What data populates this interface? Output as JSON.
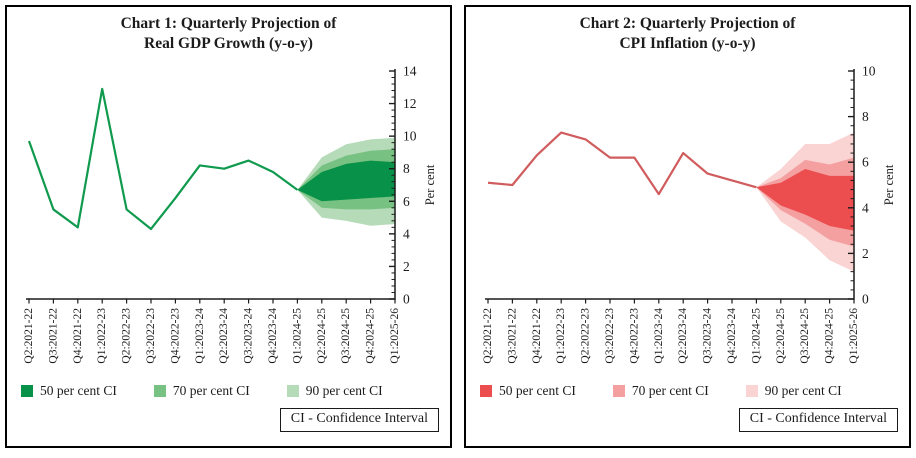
{
  "chart_data": [
    {
      "type": "line",
      "variant": "fan-chart",
      "title_line1": "Chart 1: Quarterly Projection of",
      "title_line2": "Real GDP Growth (y-o-y)",
      "ylabel": "Per cent",
      "ylim": [
        0,
        14
      ],
      "yticks": [
        0,
        2,
        4,
        6,
        8,
        10,
        12,
        14
      ],
      "minor_tick_step": 0.4,
      "grid": false,
      "legend_position": "bottom",
      "categories": [
        "Q2:2021-22",
        "Q3:2021-22",
        "Q4:2021-22",
        "Q1:2022-23",
        "Q2:2022-23",
        "Q3:2022-23",
        "Q4:2022-23",
        "Q1:2023-24",
        "Q2:2023-24",
        "Q3:2023-24",
        "Q4:2023-24",
        "Q1:2024-25",
        "Q2:2024-25",
        "Q3:2024-25",
        "Q4:2024-25",
        "Q1:2025-26"
      ],
      "series": [
        {
          "name": "Real GDP growth actual",
          "values": [
            9.7,
            5.5,
            4.4,
            12.9,
            5.5,
            4.3,
            6.2,
            8.2,
            8.0,
            8.5,
            7.8,
            6.7
          ]
        }
      ],
      "projection_start_index": 11,
      "fan": {
        "p50": {
          "top": [
            6.7,
            7.8,
            8.3,
            8.5,
            8.4
          ],
          "bottom": [
            6.7,
            6.0,
            6.1,
            6.2,
            6.3
          ]
        },
        "p70": {
          "top": [
            6.7,
            8.2,
            8.8,
            9.1,
            9.2
          ],
          "bottom": [
            6.7,
            5.6,
            5.5,
            5.5,
            5.6
          ]
        },
        "p90": {
          "top": [
            6.7,
            8.7,
            9.5,
            9.8,
            9.9
          ],
          "bottom": [
            6.7,
            5.0,
            4.8,
            4.5,
            4.6
          ]
        }
      },
      "colors": {
        "line": "#0f9a4e",
        "p50": "#089148",
        "p70": "#77c183",
        "p90": "#b6dbb8"
      },
      "legend": [
        {
          "label": "50 per cent CI",
          "color": "#089148"
        },
        {
          "label": "70 per cent CI",
          "color": "#77c183"
        },
        {
          "label": "90 per cent CI",
          "color": "#b6dbb8"
        }
      ],
      "note": "CI - Confidence Interval"
    },
    {
      "type": "line",
      "variant": "fan-chart",
      "title_line1": "Chart 2: Quarterly Projection of",
      "title_line2": "CPI Inflation (y-o-y)",
      "ylabel": "Per cent",
      "ylim": [
        0,
        10
      ],
      "yticks": [
        0,
        2,
        4,
        6,
        8,
        10
      ],
      "minor_tick_step": 0.4,
      "grid": false,
      "legend_position": "bottom",
      "categories": [
        "Q2:2021-22",
        "Q3:2021-22",
        "Q4:2021-22",
        "Q1:2022-23",
        "Q2:2022-23",
        "Q3:2022-23",
        "Q4:2022-23",
        "Q1:2023-24",
        "Q2:2023-24",
        "Q3:2023-24",
        "Q4:2023-24",
        "Q1:2024-25",
        "Q2:2024-25",
        "Q3:2024-25",
        "Q4:2024-25",
        "Q1:2025-26"
      ],
      "series": [
        {
          "name": "CPI inflation actual",
          "values": [
            5.1,
            5.0,
            6.3,
            7.3,
            7.0,
            6.2,
            6.2,
            4.6,
            6.4,
            5.5,
            5.2,
            4.9
          ]
        }
      ],
      "projection_start_index": 11,
      "fan": {
        "p50": {
          "top": [
            4.9,
            5.1,
            5.7,
            5.4,
            5.4
          ],
          "bottom": [
            4.9,
            4.1,
            3.7,
            3.2,
            3.0
          ]
        },
        "p70": {
          "top": [
            4.9,
            5.3,
            6.1,
            5.9,
            6.2
          ],
          "bottom": [
            4.9,
            3.9,
            3.3,
            2.6,
            2.3
          ]
        },
        "p90": {
          "top": [
            4.9,
            5.7,
            6.8,
            6.8,
            7.3
          ],
          "bottom": [
            4.9,
            3.4,
            2.7,
            1.7,
            1.2
          ]
        }
      },
      "colors": {
        "line": "#d05c5e",
        "p50": "#ec4d4f",
        "p70": "#f4a0a0",
        "p90": "#fad3d3"
      },
      "legend": [
        {
          "label": "50 per cent CI",
          "color": "#ec4d4f"
        },
        {
          "label": "70 per cent CI",
          "color": "#f4a0a0"
        },
        {
          "label": "90 per cent CI",
          "color": "#fad3d3"
        }
      ],
      "note": "CI - Confidence Interval"
    }
  ]
}
